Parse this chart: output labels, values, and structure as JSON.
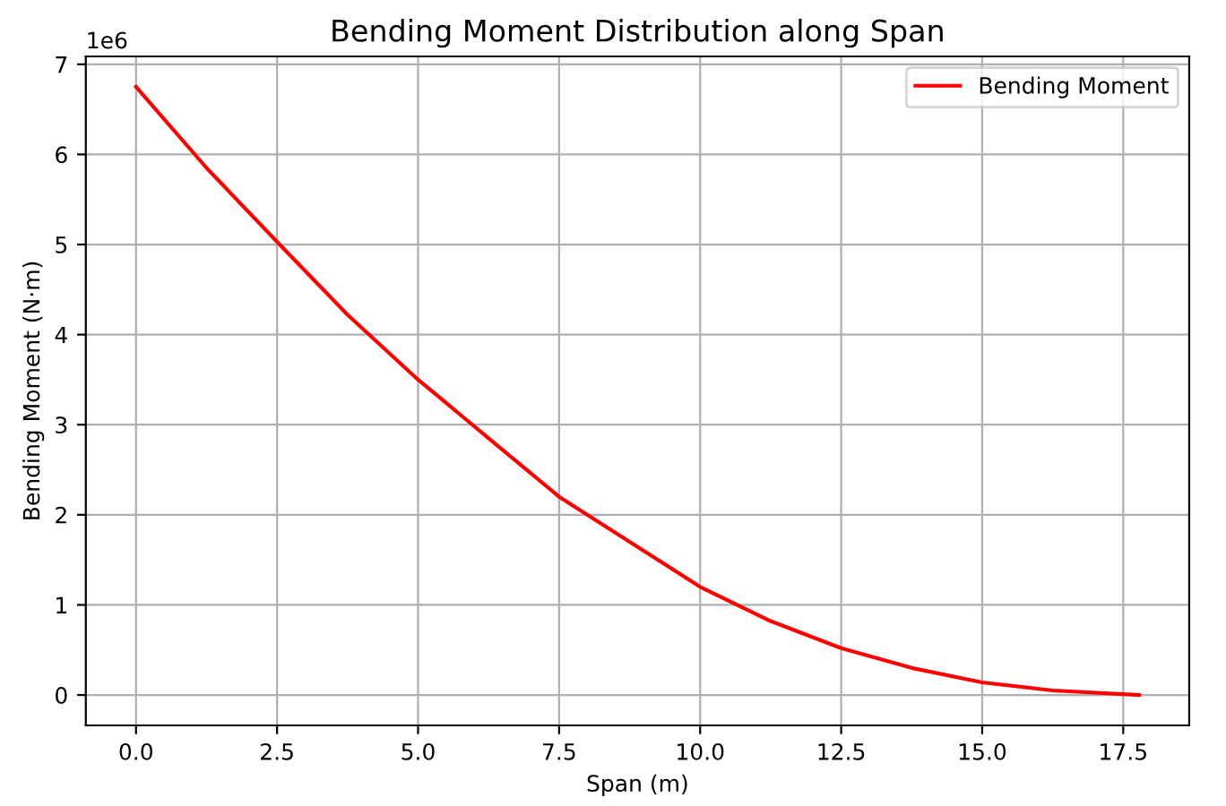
{
  "chart_data": {
    "type": "line",
    "title": "Bending Moment Distribution along Span",
    "xlabel": "Span (m)",
    "ylabel": "Bending Moment (N·m)",
    "annotations": [
      "1e6"
    ],
    "x": [
      0,
      1.25,
      2.5,
      3.75,
      5,
      6.25,
      7.5,
      8.75,
      10,
      11.25,
      12.5,
      13.75,
      15,
      16.25,
      17.78
    ],
    "series": [
      {
        "name": "Bending Moment",
        "color": "#ff0000",
        "values": [
          6.75,
          5.85,
          5.03,
          4.22,
          3.5,
          2.85,
          2.2,
          1.7,
          1.2,
          0.82,
          0.52,
          0.3,
          0.14,
          0.05,
          0
        ]
      }
    ],
    "xlim": [
      -0.89,
      18.67
    ],
    "xticks": [
      {
        "value": 0,
        "label": "0.0"
      },
      {
        "value": 2.5,
        "label": "2.5"
      },
      {
        "value": 5,
        "label": "5.0"
      },
      {
        "value": 7.5,
        "label": "7.5"
      },
      {
        "value": 10,
        "label": "10.0"
      },
      {
        "value": 12.5,
        "label": "12.5"
      },
      {
        "value": 15,
        "label": "15.0"
      },
      {
        "value": 17.5,
        "label": "17.5"
      }
    ],
    "ylim": [
      -0.3375,
      7.0875
    ],
    "yticks": [
      0,
      1,
      2,
      3,
      4,
      5,
      6,
      7
    ],
    "grid": true,
    "legend": "top right",
    "line_style": "solid",
    "marker": "none"
  }
}
